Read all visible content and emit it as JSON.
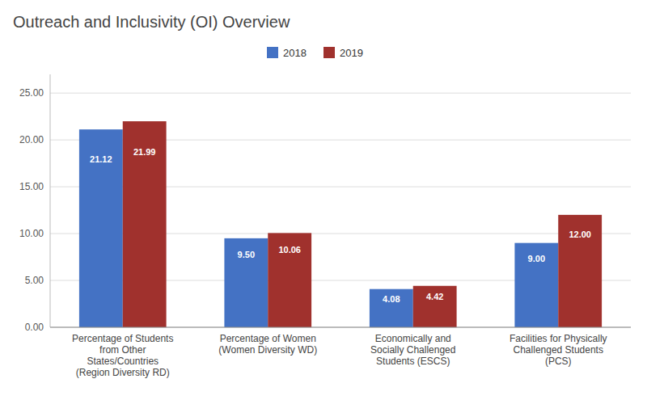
{
  "chart_data": {
    "type": "bar",
    "title": "Outreach and Inclusivity (OI) Overview",
    "categories": [
      "Percentage of Students\nfrom Other\nStates/Countries\n(Region Diversity RD)",
      "Percentage of Women\n(Women Diversity WD)",
      "Economically and\nSocially Challenged\nStudents (ESCS)",
      "Facilities for Physically\nChallenged Students\n(PCS)"
    ],
    "series": [
      {
        "name": "2018",
        "color": "#4472C4",
        "values": [
          21.12,
          9.5,
          4.08,
          9.0
        ],
        "value_labels": [
          "21.12",
          "9.50",
          "4.08",
          "9.00"
        ]
      },
      {
        "name": "2019",
        "color": "#A0312D",
        "values": [
          21.99,
          10.06,
          4.42,
          12.0
        ],
        "value_labels": [
          "21.99",
          "10.06",
          "4.42",
          "12.00"
        ]
      }
    ],
    "ylim": [
      0,
      27
    ],
    "yticks": [
      {
        "value": 0.0,
        "label": "0.00"
      },
      {
        "value": 5.0,
        "label": "5.00"
      },
      {
        "value": 10.0,
        "label": "10.00"
      },
      {
        "value": 15.0,
        "label": "15.00"
      },
      {
        "value": 20.0,
        "label": "20.00"
      },
      {
        "value": 25.0,
        "label": "25.00"
      }
    ],
    "grid": true,
    "legend": "top",
    "data_labels": true
  }
}
